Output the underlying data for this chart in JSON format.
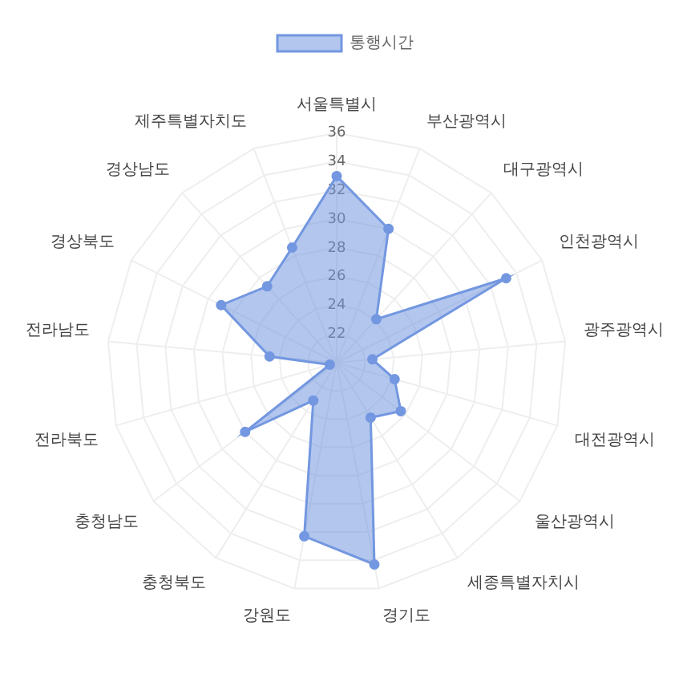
{
  "chart_data": {
    "type": "radar",
    "categories": [
      "서울특별시",
      "부산광역시",
      "대구광역시",
      "인천광역시",
      "광주광역시",
      "대전광역시",
      "울산광역시",
      "세종특별자치시",
      "경기도",
      "강원도",
      "충청북도",
      "충청남도",
      "전라북도",
      "전라남도",
      "경상북도",
      "경상남도",
      "제주특별자치도"
    ],
    "series": [
      {
        "name": "통행시간",
        "color": "#7397e0",
        "values": [
          33.0,
          30.0,
          24.1,
          33.2,
          22.5,
          24.2,
          25.6,
          24.5,
          34.3,
          32.3,
          23.1,
          28.0,
          20.5,
          24.7,
          29.0,
          27.2,
          28.6
        ]
      }
    ],
    "ylim": [
      20,
      36
    ],
    "yticks": [
      22,
      24,
      26,
      28,
      30,
      32,
      34,
      36
    ],
    "grid": true,
    "legend": "top",
    "marker": "circle"
  }
}
